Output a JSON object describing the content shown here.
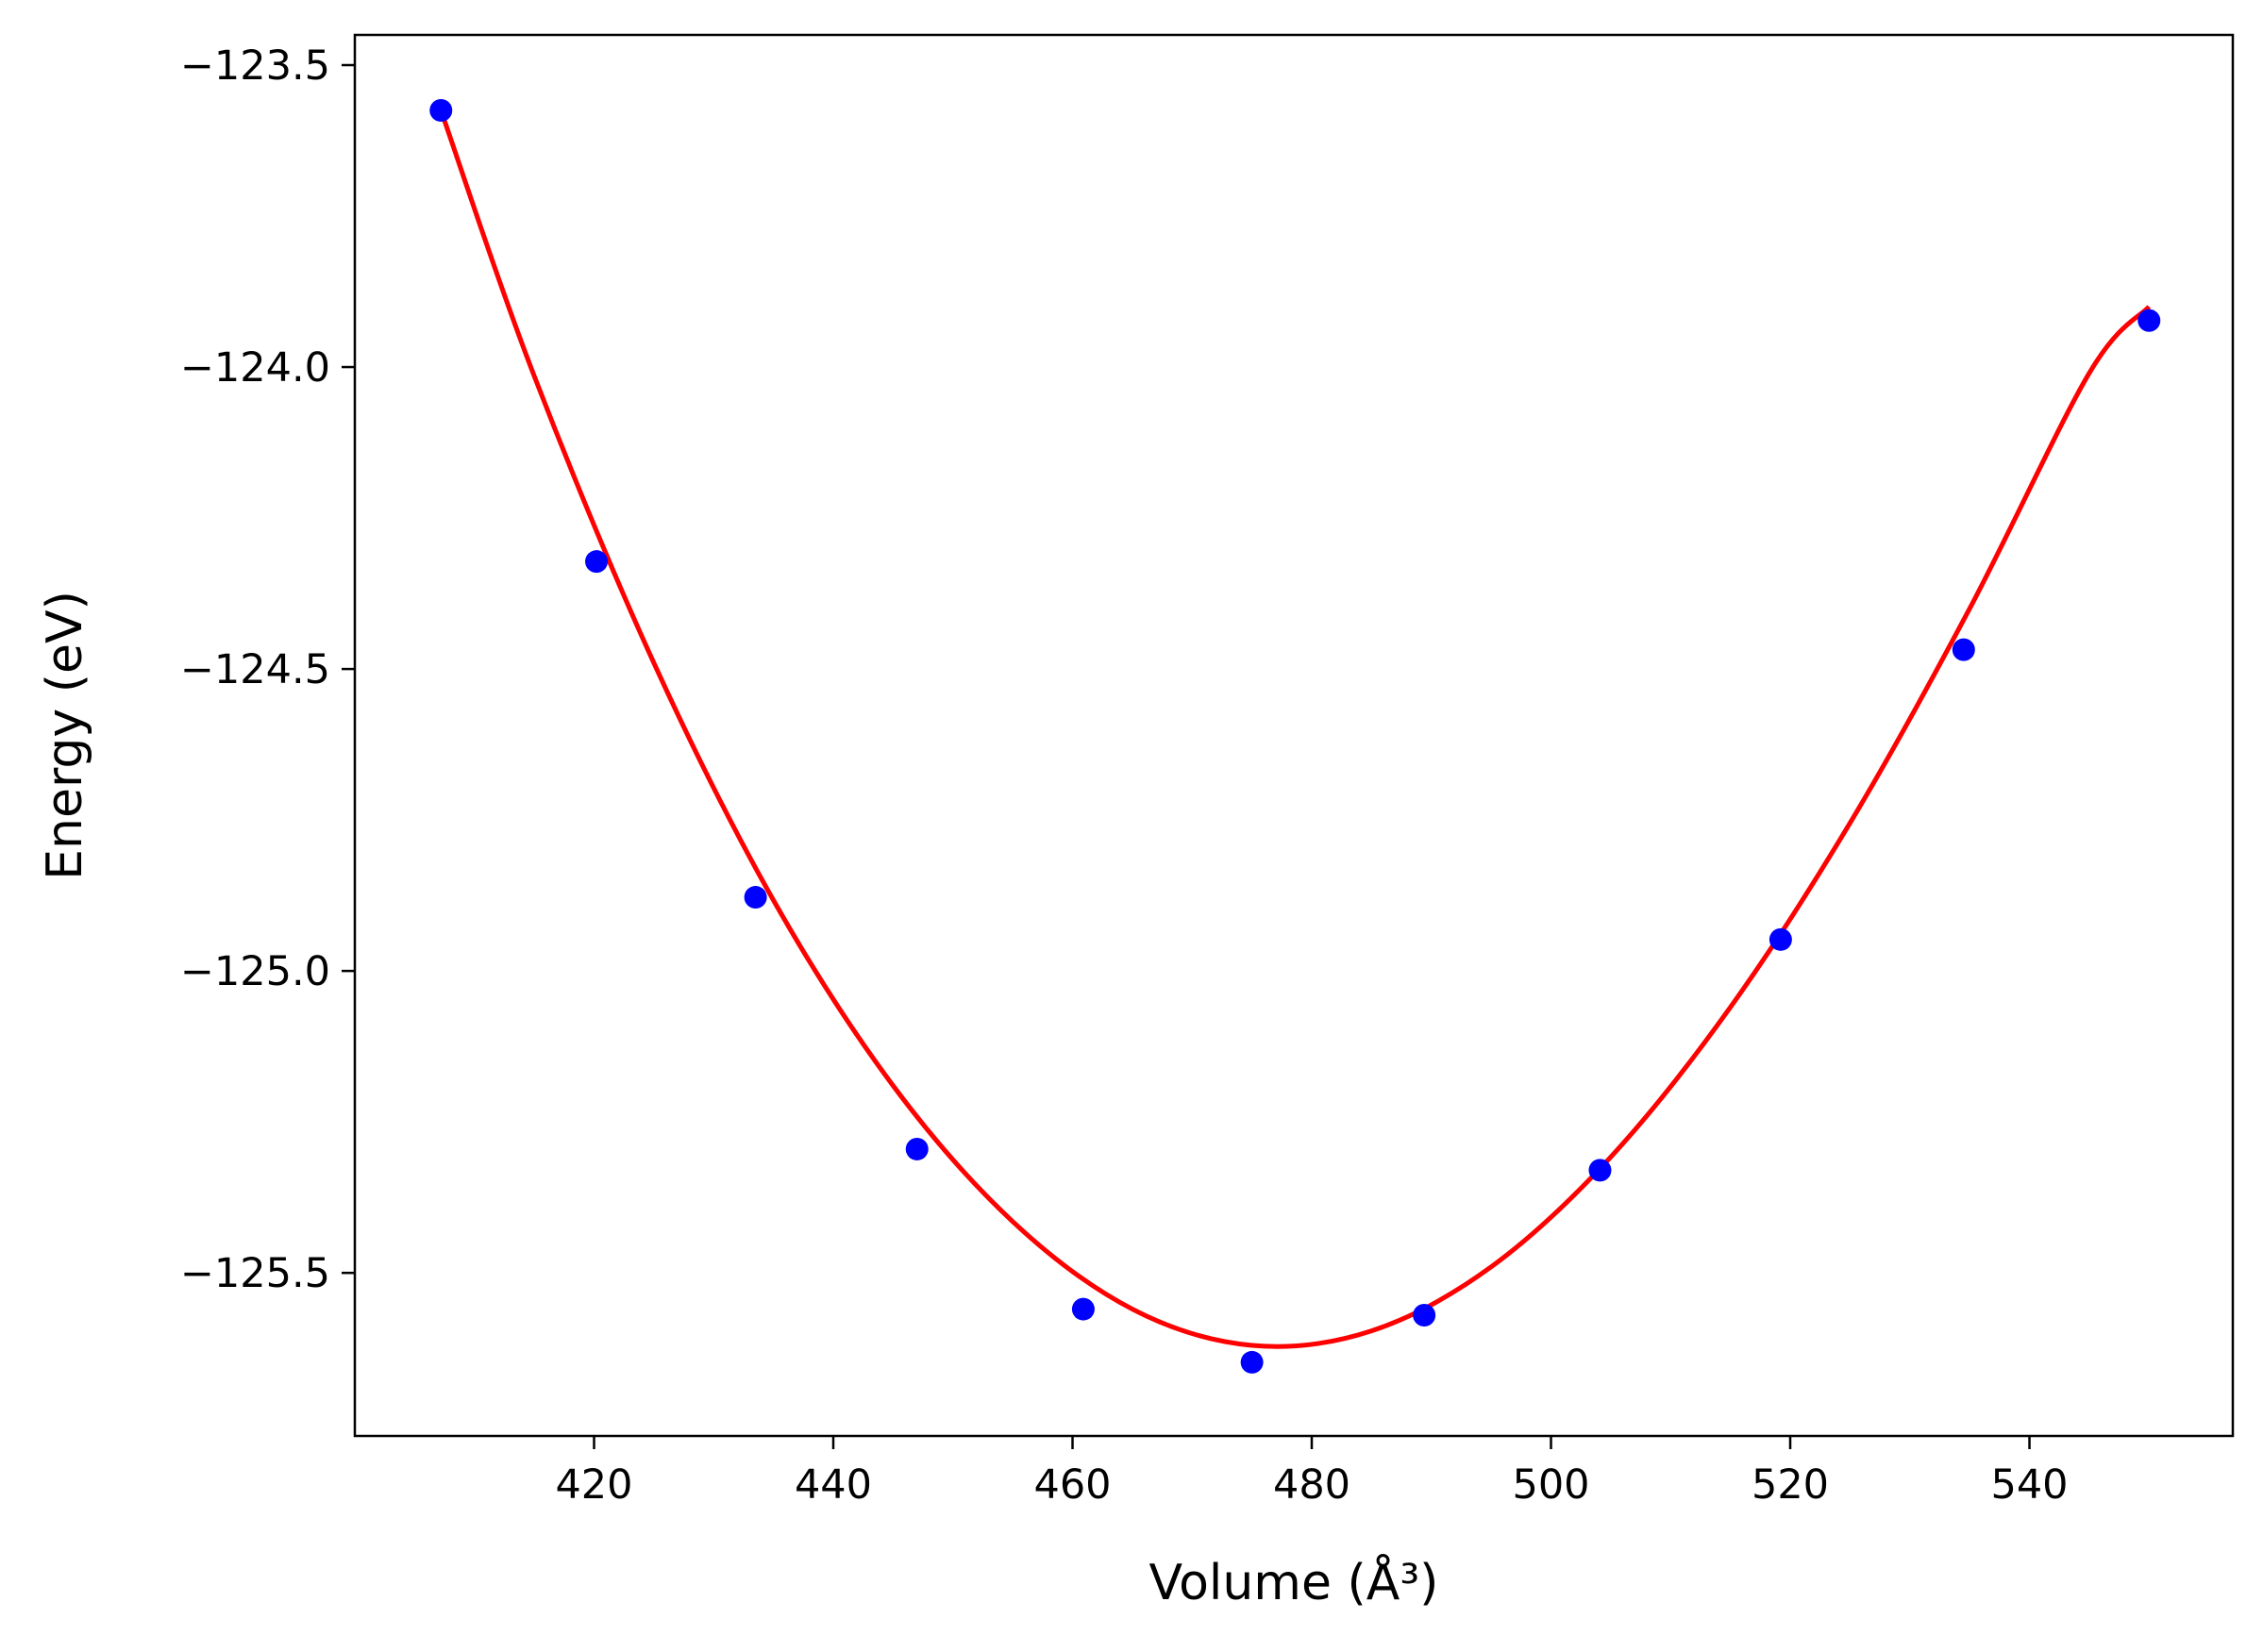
{
  "chart_data": {
    "type": "scatter",
    "xlabel": "Volume (Å³)",
    "ylabel": "Energy (eV)",
    "xlim": [
      400,
      557
    ],
    "ylim": [
      -125.77,
      -123.45
    ],
    "grid": false,
    "x_ticks": [
      420,
      440,
      460,
      480,
      500,
      520,
      540
    ],
    "x_tick_labels": [
      "420",
      "440",
      "460",
      "480",
      "500",
      "520",
      "540"
    ],
    "y_ticks": [
      -123.5,
      -124.0,
      -124.5,
      -125.0,
      -125.5
    ],
    "y_tick_labels": [
      "−123.5",
      "−124.0",
      "−124.5",
      "−125.0",
      "−125.5"
    ],
    "colors": {
      "points": "#0000ff",
      "fit": "#ff0000",
      "axes": "#000000"
    },
    "series": [
      {
        "type": "scatter",
        "x": [
          407.2,
          420.2,
          433.5,
          447.0,
          460.9,
          475.0,
          489.4,
          504.1,
          519.2,
          534.5,
          550.0
        ],
        "y": [
          -123.575,
          -124.322,
          -124.878,
          -125.295,
          -125.56,
          -125.648,
          -125.57,
          -125.33,
          -124.948,
          -124.468,
          -123.923
        ]
      },
      {
        "type": "line",
        "x": [
          407.2,
          415.0,
          425.0,
          435.0,
          445.0,
          455.0,
          465.0,
          475.0,
          485.0,
          495.0,
          505.0,
          515.0,
          525.0,
          535.0,
          545.0,
          550.0
        ],
        "y": [
          -123.575,
          -124.015,
          -124.49,
          -124.883,
          -125.19,
          -125.415,
          -125.56,
          -125.62,
          -125.596,
          -125.49,
          -125.308,
          -125.06,
          -124.755,
          -124.4,
          -124.01,
          -123.9
        ]
      }
    ]
  }
}
